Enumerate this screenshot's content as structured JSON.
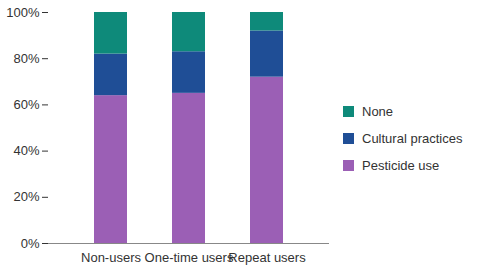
{
  "chart_data": {
    "type": "bar",
    "stacked": true,
    "categories": [
      "Non-users",
      "One-time users",
      "Repeat users"
    ],
    "series": [
      {
        "name": "Pesticide use",
        "color": "#9b5fb5",
        "values": [
          64,
          65,
          72
        ]
      },
      {
        "name": "Cultural practices",
        "color": "#1f4e96",
        "values": [
          18,
          18,
          20
        ]
      },
      {
        "name": "None",
        "color": "#0e8a7a",
        "values": [
          18,
          17,
          8
        ]
      }
    ],
    "ylim": [
      0,
      100
    ],
    "yticks": [
      {
        "value": 0,
        "label": "0%"
      },
      {
        "value": 20,
        "label": "20%"
      },
      {
        "value": 40,
        "label": "40%"
      },
      {
        "value": 60,
        "label": "60%"
      },
      {
        "value": 80,
        "label": "80%"
      },
      {
        "value": 100,
        "label": "100%"
      }
    ],
    "grid": false,
    "legend": "right"
  }
}
